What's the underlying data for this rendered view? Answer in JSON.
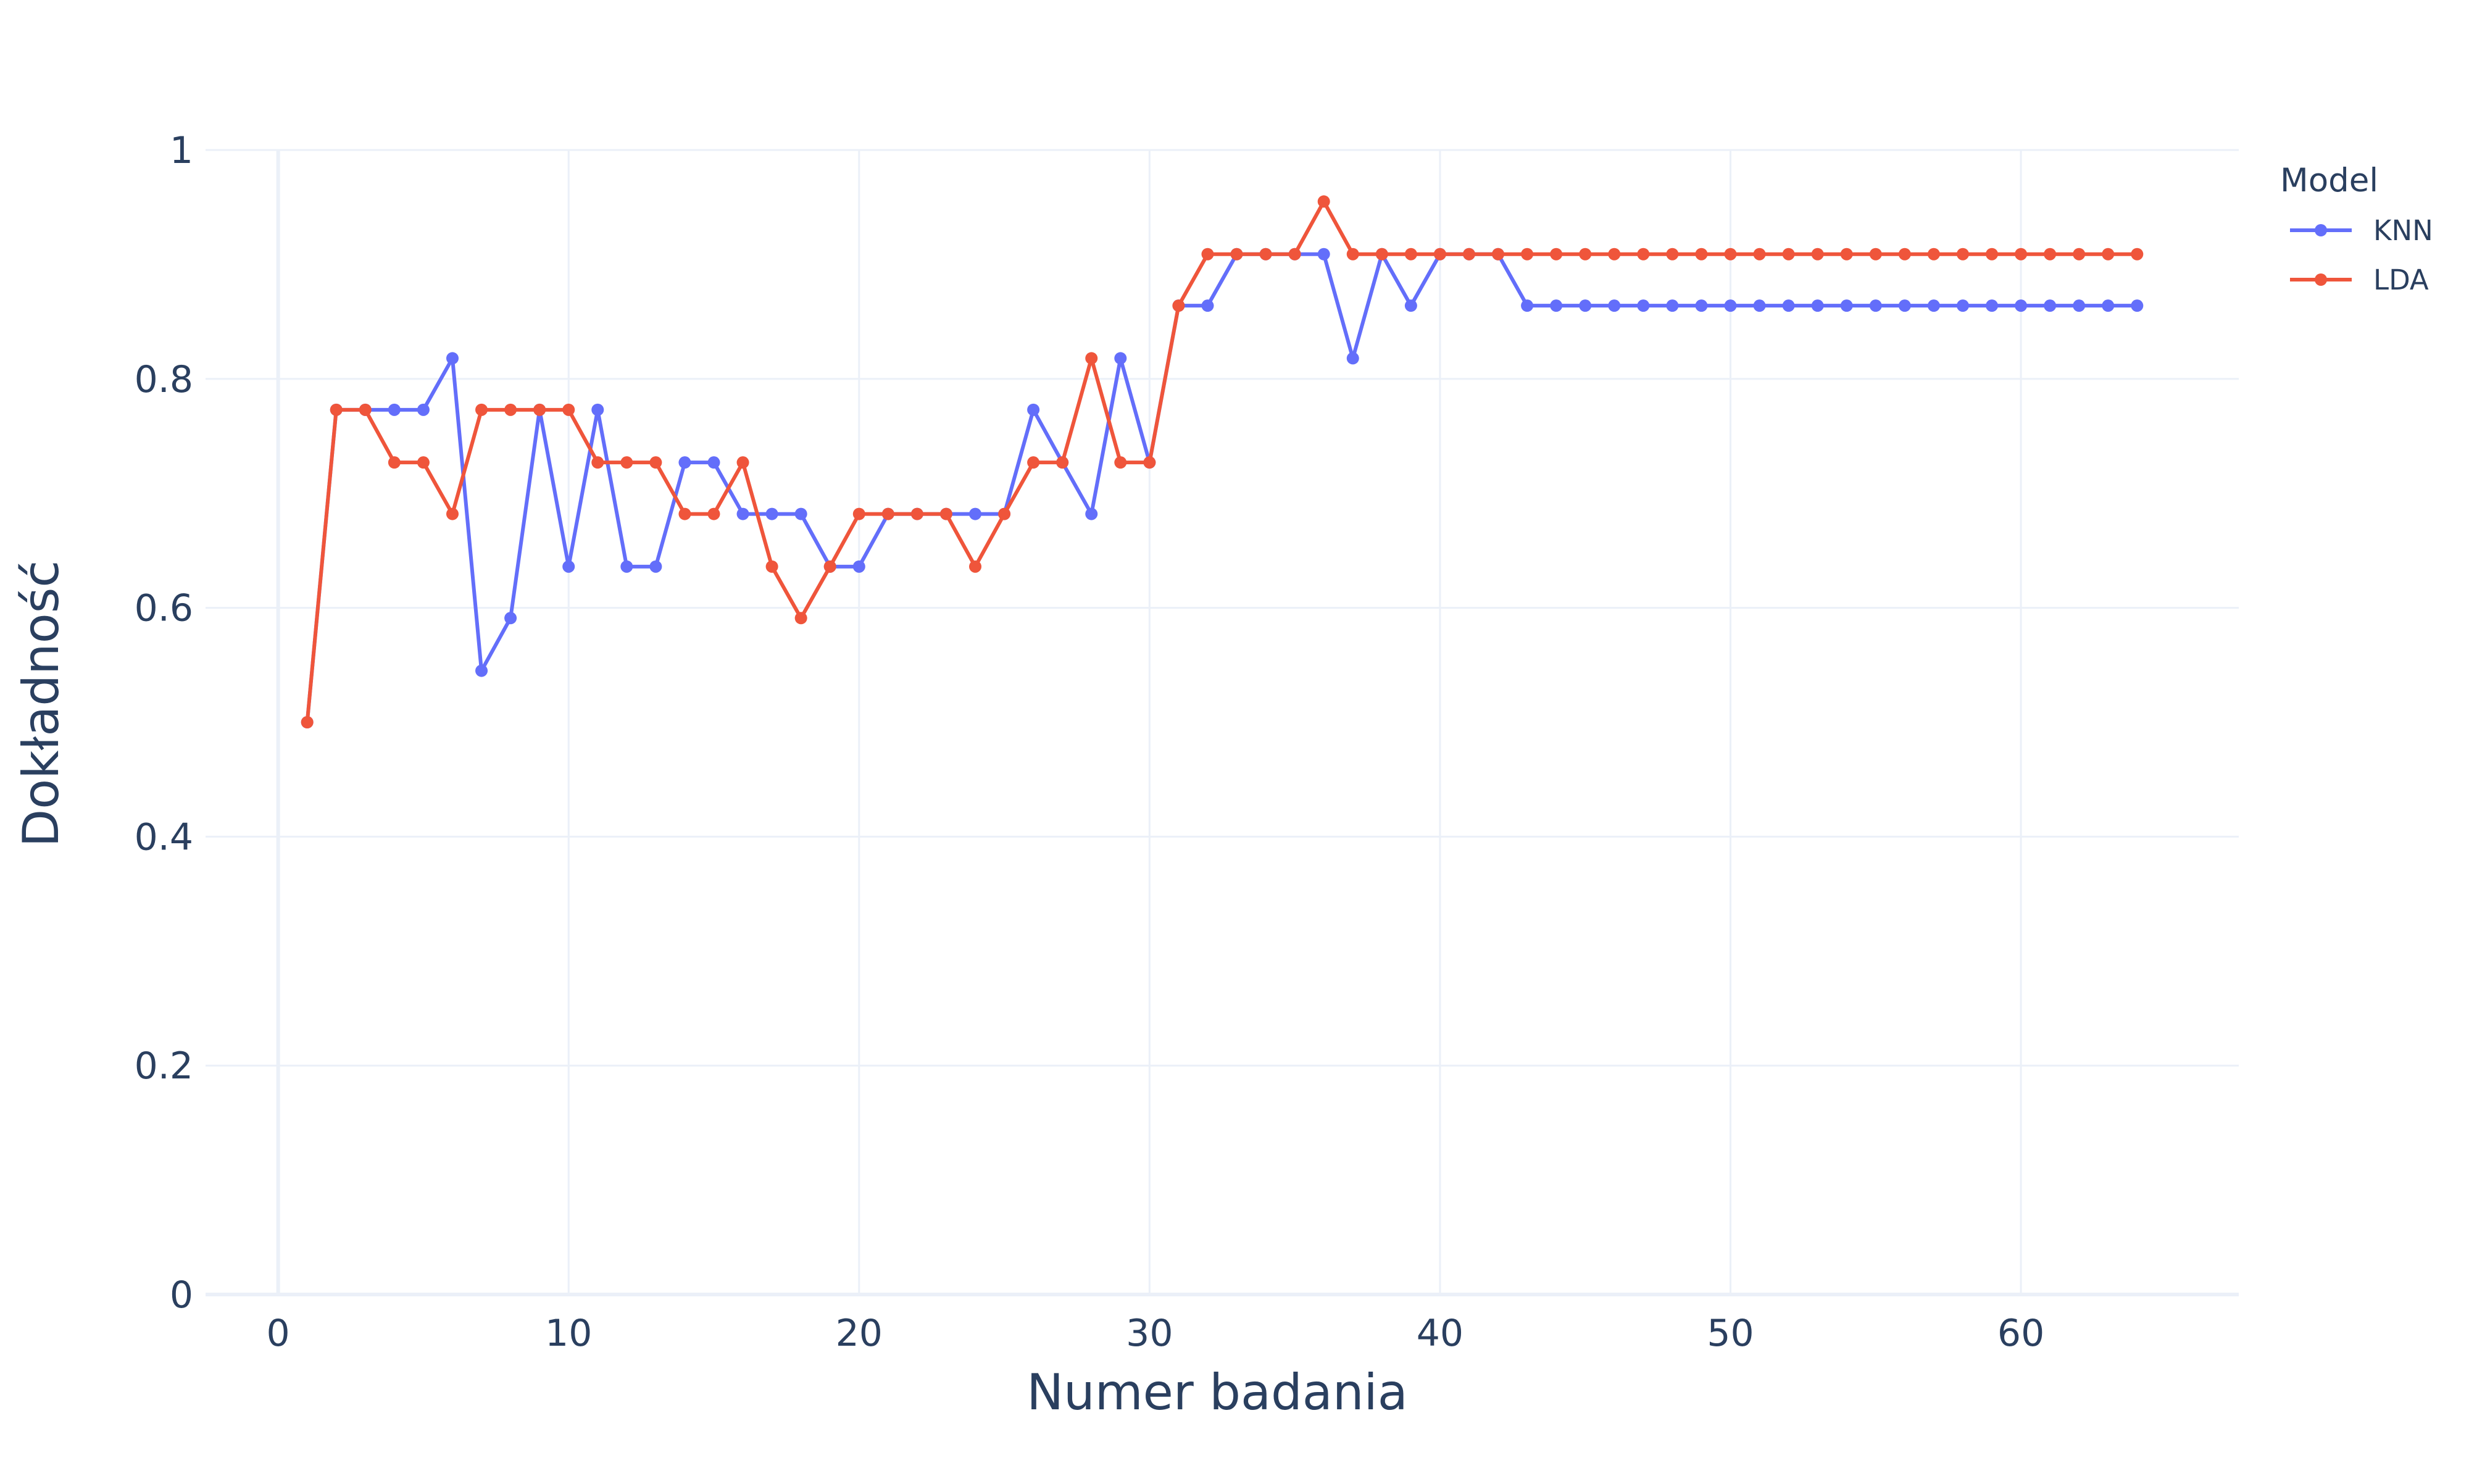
{
  "chart_data": {
    "type": "line",
    "title": "",
    "xlabel": "Numer badania",
    "ylabel": "Dokładność",
    "xlim": [
      -2.5,
      67.5
    ],
    "ylim": [
      0,
      1
    ],
    "xticks": [
      0,
      10,
      20,
      30,
      40,
      50,
      60
    ],
    "xtick_labels": [
      "0",
      "10",
      "20",
      "30",
      "40",
      "50",
      "60"
    ],
    "yticks": [
      0,
      0.2,
      0.4,
      0.6,
      0.8,
      1
    ],
    "ytick_labels": [
      "0",
      "0.2",
      "0.4",
      "0.6",
      "0.8",
      "1"
    ],
    "grid": true,
    "legend": {
      "title": "Model",
      "position": "right"
    },
    "x": [
      1,
      2,
      3,
      4,
      5,
      6,
      7,
      8,
      9,
      10,
      11,
      12,
      13,
      14,
      15,
      16,
      17,
      18,
      19,
      20,
      21,
      22,
      23,
      24,
      25,
      26,
      27,
      28,
      29,
      30,
      31,
      32,
      33,
      34,
      35,
      36,
      37,
      38,
      39,
      40,
      41,
      42,
      43,
      44,
      45,
      46,
      47,
      48,
      49,
      50,
      51,
      52,
      53,
      54,
      55,
      56,
      57,
      58,
      59,
      60,
      61,
      62,
      63,
      64
    ],
    "series": [
      {
        "name": "KNN",
        "color": "#636efa",
        "values": [
          0.5,
          0.773,
          0.773,
          0.773,
          0.773,
          0.818,
          0.545,
          0.591,
          0.773,
          0.636,
          0.773,
          0.636,
          0.636,
          0.727,
          0.727,
          0.682,
          0.682,
          0.682,
          0.636,
          0.636,
          0.682,
          0.682,
          0.682,
          0.682,
          0.682,
          0.773,
          0.727,
          0.682,
          0.818,
          0.727,
          0.864,
          0.864,
          0.909,
          0.909,
          0.909,
          0.909,
          0.818,
          0.909,
          0.864,
          0.909,
          0.909,
          0.909,
          0.864,
          0.864,
          0.864,
          0.864,
          0.864,
          0.864,
          0.864,
          0.864,
          0.864,
          0.864,
          0.864,
          0.864,
          0.864,
          0.864,
          0.864,
          0.864,
          0.864,
          0.864,
          0.864,
          0.864,
          0.864,
          0.864
        ]
      },
      {
        "name": "LDA",
        "color": "#ef553b",
        "values": [
          0.5,
          0.773,
          0.773,
          0.727,
          0.727,
          0.682,
          0.773,
          0.773,
          0.773,
          0.773,
          0.727,
          0.727,
          0.727,
          0.682,
          0.682,
          0.727,
          0.636,
          0.591,
          0.636,
          0.682,
          0.682,
          0.682,
          0.682,
          0.636,
          0.682,
          0.727,
          0.727,
          0.818,
          0.727,
          0.727,
          0.864,
          0.909,
          0.909,
          0.909,
          0.909,
          0.955,
          0.909,
          0.909,
          0.909,
          0.909,
          0.909,
          0.909,
          0.909,
          0.909,
          0.909,
          0.909,
          0.909,
          0.909,
          0.909,
          0.909,
          0.909,
          0.909,
          0.909,
          0.909,
          0.909,
          0.909,
          0.909,
          0.909,
          0.909,
          0.909,
          0.909,
          0.909,
          0.909,
          0.909
        ]
      }
    ]
  }
}
